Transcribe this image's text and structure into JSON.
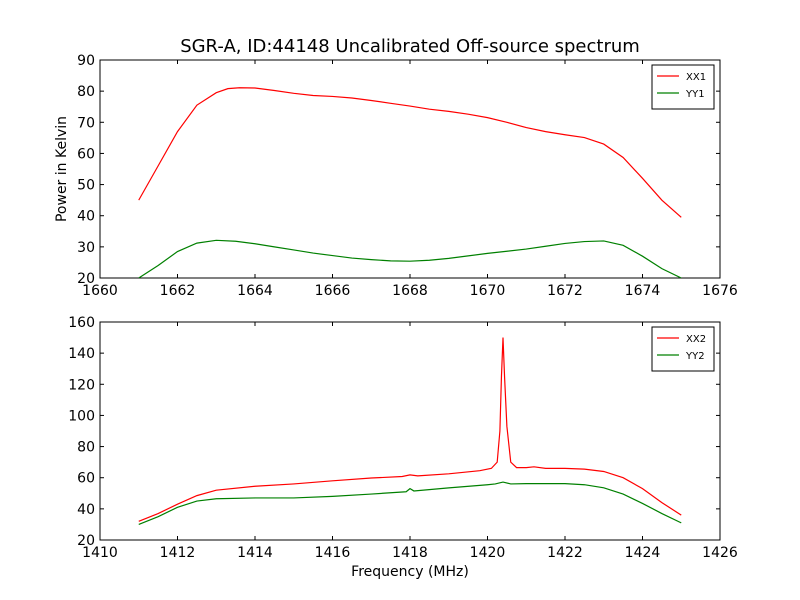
{
  "chart_data": [
    {
      "type": "line",
      "title": "SGR-A, ID:44148 Uncalibrated Off-source spectrum",
      "xlabel": "",
      "ylabel": "Power in Kelvin",
      "xlim": [
        1660,
        1676
      ],
      "ylim": [
        20,
        90
      ],
      "xticks": [
        "1660",
        "1662",
        "1664",
        "1666",
        "1668",
        "1670",
        "1672",
        "1674",
        "1676"
      ],
      "yticks": [
        "20",
        "30",
        "40",
        "50",
        "60",
        "70",
        "80",
        "90"
      ],
      "grid": false,
      "legend": "top-right",
      "series": [
        {
          "name": "XX1",
          "color": "#ff0000",
          "x": [
            1661.0,
            1661.5,
            1662.0,
            1662.5,
            1663.0,
            1663.3,
            1663.6,
            1664.0,
            1664.5,
            1665.0,
            1665.5,
            1666.0,
            1666.5,
            1667.0,
            1667.5,
            1668.0,
            1668.5,
            1669.0,
            1669.5,
            1670.0,
            1670.5,
            1671.0,
            1671.5,
            1672.0,
            1672.5,
            1673.0,
            1673.5,
            1674.0,
            1674.5,
            1675.0
          ],
          "y": [
            45,
            56,
            67,
            75.5,
            79.5,
            80.8,
            81.1,
            81.0,
            80.2,
            79.3,
            78.6,
            78.3,
            77.8,
            77.0,
            76.1,
            75.2,
            74.2,
            73.5,
            72.6,
            71.5,
            70.0,
            68.3,
            67.0,
            66.0,
            65.1,
            63.0,
            58.7,
            52.0,
            45.0,
            39.5
          ]
        },
        {
          "name": "YY1",
          "color": "#008000",
          "x": [
            1661.0,
            1661.5,
            1662.0,
            1662.5,
            1663.0,
            1663.5,
            1664.0,
            1664.5,
            1665.0,
            1665.5,
            1666.0,
            1666.5,
            1667.0,
            1667.5,
            1668.0,
            1668.5,
            1669.0,
            1669.5,
            1670.0,
            1670.5,
            1671.0,
            1671.5,
            1672.0,
            1672.5,
            1673.0,
            1673.5,
            1674.0,
            1674.5,
            1675.0
          ],
          "y": [
            20,
            24,
            28.5,
            31.2,
            32.1,
            31.8,
            31.0,
            30.0,
            29.0,
            28.0,
            27.2,
            26.4,
            25.9,
            25.5,
            25.4,
            25.7,
            26.3,
            27.1,
            27.9,
            28.6,
            29.3,
            30.2,
            31.1,
            31.7,
            31.9,
            30.5,
            27.0,
            23.0,
            20.0
          ]
        }
      ]
    },
    {
      "type": "line",
      "title": "",
      "xlabel": "Frequency (MHz)",
      "ylabel": "",
      "xlim": [
        1410,
        1426
      ],
      "ylim": [
        20,
        160
      ],
      "xticks": [
        "1410",
        "1412",
        "1414",
        "1416",
        "1418",
        "1420",
        "1422",
        "1424",
        "1426"
      ],
      "yticks": [
        "20",
        "40",
        "60",
        "80",
        "100",
        "120",
        "140",
        "160"
      ],
      "grid": false,
      "legend": "top-right",
      "series": [
        {
          "name": "XX2",
          "color": "#ff0000",
          "x": [
            1411.0,
            1411.5,
            1412.0,
            1412.5,
            1413.0,
            1414.0,
            1415.0,
            1416.0,
            1417.0,
            1417.8,
            1418.0,
            1418.2,
            1419.0,
            1419.8,
            1420.1,
            1420.25,
            1420.32,
            1420.36,
            1420.4,
            1420.44,
            1420.5,
            1420.6,
            1420.75,
            1421.0,
            1421.2,
            1421.5,
            1422.0,
            1422.5,
            1423.0,
            1423.5,
            1424.0,
            1424.5,
            1425.0
          ],
          "y": [
            32,
            37,
            43,
            48.5,
            52,
            54.5,
            56,
            58,
            59.8,
            60.8,
            61.8,
            61.2,
            62.5,
            64.5,
            66,
            70,
            90,
            125,
            150,
            125,
            93,
            70,
            66.5,
            66.5,
            67,
            66,
            66,
            65.5,
            64,
            60,
            53,
            44,
            36
          ]
        },
        {
          "name": "YY2",
          "color": "#008000",
          "x": [
            1411.0,
            1411.5,
            1412.0,
            1412.5,
            1413.0,
            1414.0,
            1415.0,
            1416.0,
            1417.0,
            1417.9,
            1418.0,
            1418.1,
            1419.0,
            1420.0,
            1420.2,
            1420.4,
            1420.6,
            1421.0,
            1422.0,
            1422.5,
            1423.0,
            1423.5,
            1424.0,
            1424.5,
            1425.0
          ],
          "y": [
            30,
            35,
            41,
            45,
            46.5,
            47,
            47,
            48,
            49.5,
            51,
            53,
            51.5,
            53.5,
            55.5,
            56,
            57.2,
            56,
            56.2,
            56.2,
            55.5,
            53.5,
            49.5,
            43.5,
            37,
            31
          ]
        }
      ]
    }
  ]
}
